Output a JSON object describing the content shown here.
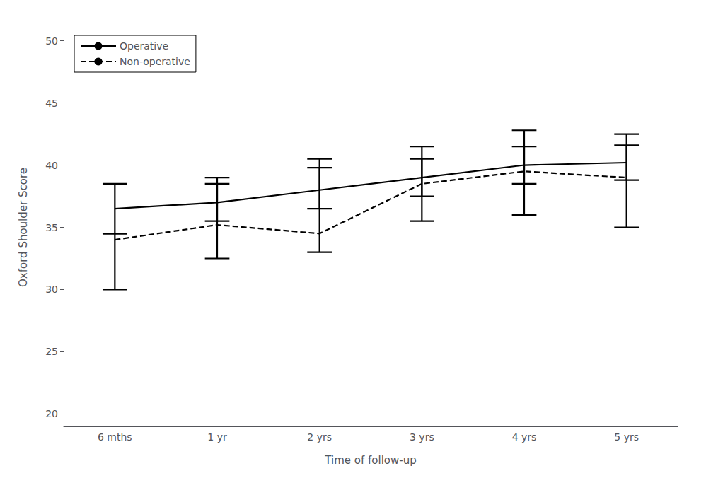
{
  "chart_data": {
    "type": "line",
    "xlabel": "Time of follow-up",
    "ylabel": "Oxford Shoulder Score",
    "categories": [
      "6 mths",
      "1 yr",
      "2 yrs",
      "3 yrs",
      "4 yrs",
      "5 yrs"
    ],
    "series": [
      {
        "name": "Operative",
        "color": "#000000",
        "line_style": "solid",
        "values": [
          36.5,
          37.0,
          38.0,
          39.0,
          40.0,
          40.2
        ],
        "ci_low": [
          34.5,
          35.5,
          36.5,
          37.5,
          38.5,
          38.8
        ],
        "ci_high": [
          38.5,
          39.0,
          39.8,
          40.5,
          41.5,
          41.6
        ]
      },
      {
        "name": "Non-operative",
        "color": "#000000",
        "line_style": "dashed",
        "values": [
          34.0,
          35.2,
          34.5,
          38.5,
          39.5,
          39.0
        ],
        "ci_low": [
          30.0,
          32.5,
          33.0,
          35.5,
          36.0,
          35.0
        ],
        "ci_high": [
          34.5,
          38.5,
          40.5,
          41.5,
          42.8,
          42.5
        ]
      }
    ],
    "ylim": [
      19,
      51
    ],
    "yticks": [
      20,
      25,
      30,
      35,
      40,
      45,
      50
    ],
    "grid": false,
    "legend": "upper left"
  }
}
